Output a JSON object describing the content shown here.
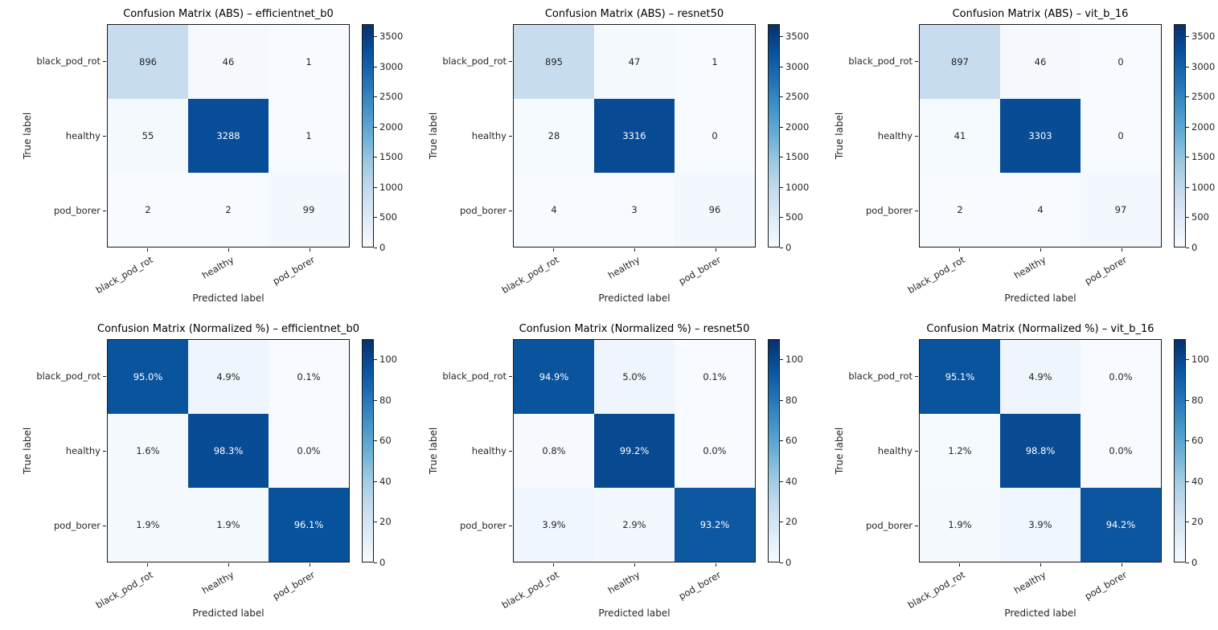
{
  "page": {
    "background": "#ffffff",
    "description": "Grid of six confusion matrix heatmaps, two rows by three columns"
  },
  "colormap": {
    "name": "Blues",
    "stops": [
      "#f7fbff",
      "#deebf7",
      "#c6dbef",
      "#9ecae1",
      "#6baed6",
      "#4292c6",
      "#2171b5",
      "#08519c",
      "#08306b"
    ]
  },
  "text_colors": {
    "axis_text": "#262626",
    "title_text": "#000000",
    "light_cell_text": "#262626",
    "dark_cell_text": "#ffffff"
  },
  "chart_data": [
    {
      "type": "heatmap",
      "title": "Confusion Matrix (ABS) – efficientnet_b0",
      "xlabel": "Predicted label",
      "ylabel": "True label",
      "x_categories": [
        "black_pod_rot",
        "healthy",
        "pod_borer"
      ],
      "y_categories": [
        "black_pod_rot",
        "healthy",
        "pod_borer"
      ],
      "values": [
        [
          896,
          46,
          1
        ],
        [
          55,
          3288,
          1
        ],
        [
          2,
          2,
          99
        ]
      ],
      "cell_labels": [
        [
          "896",
          "46",
          "1"
        ],
        [
          "55",
          "3288",
          "1"
        ],
        [
          "2",
          "2",
          "99"
        ]
      ],
      "vmin": 0,
      "vmax": 3700,
      "colorbar_ticks": [
        0,
        500,
        1000,
        1500,
        2000,
        2500,
        3000,
        3500
      ]
    },
    {
      "type": "heatmap",
      "title": "Confusion Matrix (ABS) – resnet50",
      "xlabel": "Predicted label",
      "ylabel": "True label",
      "x_categories": [
        "black_pod_rot",
        "healthy",
        "pod_borer"
      ],
      "y_categories": [
        "black_pod_rot",
        "healthy",
        "pod_borer"
      ],
      "values": [
        [
          895,
          47,
          1
        ],
        [
          28,
          3316,
          0
        ],
        [
          4,
          3,
          96
        ]
      ],
      "cell_labels": [
        [
          "895",
          "47",
          "1"
        ],
        [
          "28",
          "3316",
          "0"
        ],
        [
          "4",
          "3",
          "96"
        ]
      ],
      "vmin": 0,
      "vmax": 3700,
      "colorbar_ticks": [
        0,
        500,
        1000,
        1500,
        2000,
        2500,
        3000,
        3500
      ]
    },
    {
      "type": "heatmap",
      "title": "Confusion Matrix (ABS) – vit_b_16",
      "xlabel": "Predicted label",
      "ylabel": "True label",
      "x_categories": [
        "black_pod_rot",
        "healthy",
        "pod_borer"
      ],
      "y_categories": [
        "black_pod_rot",
        "healthy",
        "pod_borer"
      ],
      "values": [
        [
          897,
          46,
          0
        ],
        [
          41,
          3303,
          0
        ],
        [
          2,
          4,
          97
        ]
      ],
      "cell_labels": [
        [
          "897",
          "46",
          "0"
        ],
        [
          "41",
          "3303",
          "0"
        ],
        [
          "2",
          "4",
          "97"
        ]
      ],
      "vmin": 0,
      "vmax": 3700,
      "colorbar_ticks": [
        0,
        500,
        1000,
        1500,
        2000,
        2500,
        3000,
        3500
      ]
    },
    {
      "type": "heatmap",
      "title": "Confusion Matrix (Normalized %) – efficientnet_b0",
      "xlabel": "Predicted label",
      "ylabel": "True label",
      "x_categories": [
        "black_pod_rot",
        "healthy",
        "pod_borer"
      ],
      "y_categories": [
        "black_pod_rot",
        "healthy",
        "pod_borer"
      ],
      "values": [
        [
          95.0,
          4.9,
          0.1
        ],
        [
          1.6,
          98.3,
          0.0
        ],
        [
          1.9,
          1.9,
          96.1
        ]
      ],
      "cell_labels": [
        [
          "95.0%",
          "4.9%",
          "0.1%"
        ],
        [
          "1.6%",
          "98.3%",
          "0.0%"
        ],
        [
          "1.9%",
          "1.9%",
          "96.1%"
        ]
      ],
      "vmin": 0,
      "vmax": 110,
      "colorbar_ticks": [
        0,
        20,
        40,
        60,
        80,
        100
      ]
    },
    {
      "type": "heatmap",
      "title": "Confusion Matrix (Normalized %) – resnet50",
      "xlabel": "Predicted label",
      "ylabel": "True label",
      "x_categories": [
        "black_pod_rot",
        "healthy",
        "pod_borer"
      ],
      "y_categories": [
        "black_pod_rot",
        "healthy",
        "pod_borer"
      ],
      "values": [
        [
          94.9,
          5.0,
          0.1
        ],
        [
          0.8,
          99.2,
          0.0
        ],
        [
          3.9,
          2.9,
          93.2
        ]
      ],
      "cell_labels": [
        [
          "94.9%",
          "5.0%",
          "0.1%"
        ],
        [
          "0.8%",
          "99.2%",
          "0.0%"
        ],
        [
          "3.9%",
          "2.9%",
          "93.2%"
        ]
      ],
      "vmin": 0,
      "vmax": 110,
      "colorbar_ticks": [
        0,
        20,
        40,
        60,
        80,
        100
      ]
    },
    {
      "type": "heatmap",
      "title": "Confusion Matrix (Normalized %) – vit_b_16",
      "xlabel": "Predicted label",
      "ylabel": "True label",
      "x_categories": [
        "black_pod_rot",
        "healthy",
        "pod_borer"
      ],
      "y_categories": [
        "black_pod_rot",
        "healthy",
        "pod_borer"
      ],
      "values": [
        [
          95.1,
          4.9,
          0.0
        ],
        [
          1.2,
          98.8,
          0.0
        ],
        [
          1.9,
          3.9,
          94.2
        ]
      ],
      "cell_labels": [
        [
          "95.1%",
          "4.9%",
          "0.0%"
        ],
        [
          "1.2%",
          "98.8%",
          "0.0%"
        ],
        [
          "1.9%",
          "3.9%",
          "94.2%"
        ]
      ],
      "vmin": 0,
      "vmax": 110,
      "colorbar_ticks": [
        0,
        20,
        40,
        60,
        80,
        100
      ]
    }
  ]
}
